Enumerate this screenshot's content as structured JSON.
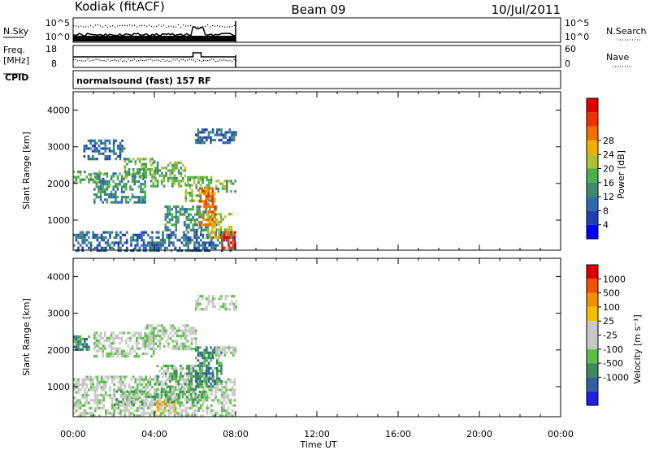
{
  "header": {
    "station": "Kodiak (fitACF)",
    "beam": "Beam 09",
    "date": "10/Jul/2011"
  },
  "strip_panels": {
    "nsky_label": "N.Sky",
    "nsky_ticks": [
      "10^5",
      "10^0"
    ],
    "nsearch_label": "N.Search",
    "nsearch_ticks": [
      "10^5",
      "10^0"
    ],
    "freq_label": "Freq.",
    "freq_unit": "[MHz]",
    "freq_ticks": [
      "18",
      "8"
    ],
    "nave_label": "Nave",
    "nave_ticks": [
      "60",
      "0"
    ],
    "cpid_label": "CPID",
    "cpid_text": "normalsound (fast) 157 RF"
  },
  "chart_data": [
    {
      "type": "heatmap",
      "name": "power",
      "ylabel": "Slant Range [km]",
      "y_ticks": [
        1000,
        2000,
        3000,
        4000
      ],
      "ylim": [
        180,
        4500
      ],
      "xlim": [
        0,
        24
      ],
      "x_ticks": [
        "00:00",
        "04:00",
        "08:00",
        "12:00",
        "16:00",
        "20:00",
        "00:00"
      ],
      "colorbar": {
        "label": "Power [dB]",
        "tick_labels": [
          "4",
          "8",
          "12",
          "16",
          "20",
          "24",
          "28"
        ],
        "colors": [
          "#0000ff",
          "#2040b0",
          "#2e6ab0",
          "#3d8a6c",
          "#4db04a",
          "#b0c030",
          "#f0b000",
          "#f07000",
          "#f03000",
          "#e00000"
        ]
      },
      "regions": [
        {
          "t": [
            0.0,
            8.0
          ],
          "r": [
            180,
            700
          ],
          "level": 2
        },
        {
          "t": [
            0.0,
            1.5
          ],
          "r": [
            2000,
            2350
          ],
          "level": 4
        },
        {
          "t": [
            1.0,
            3.5
          ],
          "r": [
            1500,
            2300
          ],
          "level": 3
        },
        {
          "t": [
            2.5,
            4.0
          ],
          "r": [
            2200,
            2700
          ],
          "level": 4
        },
        {
          "t": [
            3.8,
            5.5
          ],
          "r": [
            1900,
            2600
          ],
          "level": 4
        },
        {
          "t": [
            4.5,
            7.0
          ],
          "r": [
            700,
            1400
          ],
          "level": 3
        },
        {
          "t": [
            5.5,
            6.8
          ],
          "r": [
            1500,
            2200
          ],
          "level": 4
        },
        {
          "t": [
            6.5,
            7.8
          ],
          "r": [
            500,
            1200
          ],
          "level": 5
        },
        {
          "t": [
            6.2,
            7.0
          ],
          "r": [
            900,
            1900
          ],
          "level": 7
        },
        {
          "t": [
            7.0,
            8.0
          ],
          "r": [
            1800,
            2100
          ],
          "level": 4
        },
        {
          "t": [
            6.0,
            8.0
          ],
          "r": [
            3100,
            3500
          ],
          "level": 2
        },
        {
          "t": [
            0.5,
            2.5
          ],
          "r": [
            2700,
            3200
          ],
          "level": 2
        },
        {
          "t": [
            7.3,
            8.0
          ],
          "r": [
            250,
            700
          ],
          "level": 8
        }
      ]
    },
    {
      "type": "heatmap",
      "name": "velocity",
      "ylabel": "Slant Range [km]",
      "y_ticks": [
        1000,
        2000,
        3000,
        4000
      ],
      "ylim": [
        180,
        4500
      ],
      "xlim": [
        0,
        24
      ],
      "x_ticks": [
        "00:00",
        "04:00",
        "08:00",
        "12:00",
        "16:00",
        "20:00",
        "00:00"
      ],
      "xlabel": "Time UT",
      "colorbar": {
        "label": "Velocity [m s⁻¹]",
        "tick_labels": [
          "1000",
          "500",
          "100",
          "25",
          "-25",
          "-100",
          "-500",
          "-1000"
        ],
        "colors": [
          "#2020e0",
          "#3060a0",
          "#3c8c5c",
          "#5cc048",
          "#c8c8c8",
          "#c8c8c8",
          "#f0c000",
          "#f09000",
          "#f05000",
          "#e00000"
        ]
      },
      "regions": [
        {
          "t": [
            0.0,
            8.0
          ],
          "r": [
            180,
            1300
          ],
          "level": 4
        },
        {
          "t": [
            0.0,
            0.8
          ],
          "r": [
            2000,
            2400
          ],
          "level": 2
        },
        {
          "t": [
            1.0,
            4.0
          ],
          "r": [
            1800,
            2500
          ],
          "level": 4
        },
        {
          "t": [
            3.5,
            6.0
          ],
          "r": [
            2000,
            2700
          ],
          "level": 4
        },
        {
          "t": [
            4.0,
            6.5
          ],
          "r": [
            600,
            1600
          ],
          "level": 3
        },
        {
          "t": [
            6.0,
            7.3
          ],
          "r": [
            1000,
            2100
          ],
          "level": 2
        },
        {
          "t": [
            7.0,
            8.0
          ],
          "r": [
            1800,
            2100
          ],
          "level": 4
        },
        {
          "t": [
            6.0,
            8.0
          ],
          "r": [
            3100,
            3500
          ],
          "level": 4
        },
        {
          "t": [
            2.0,
            4.0
          ],
          "r": [
            500,
            900
          ],
          "level": 3
        },
        {
          "t": [
            4.0,
            5.0
          ],
          "r": [
            300,
            700
          ],
          "level": 6
        }
      ]
    }
  ]
}
